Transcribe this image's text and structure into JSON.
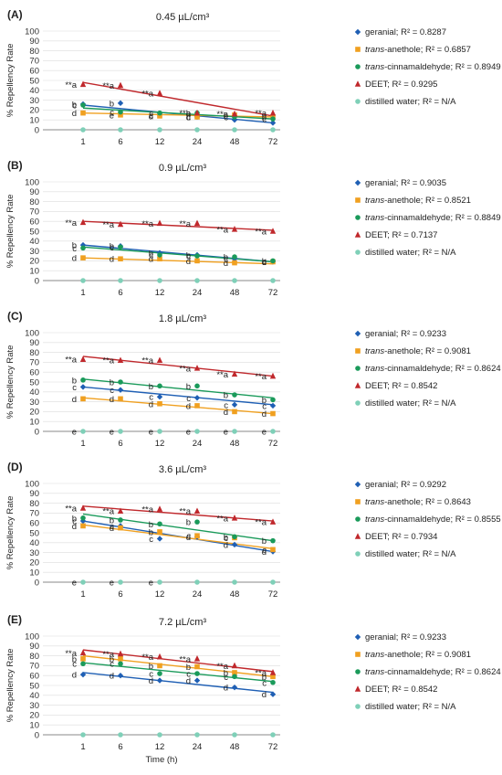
{
  "figure": {
    "ylabel": "% Repellency Rate",
    "xlabel": "Time (h)"
  },
  "chart_data": [
    {
      "type": "scatter",
      "panel": "(A)",
      "title": "0.45 µL/cm³",
      "x_categories": [
        "1",
        "6",
        "12",
        "24",
        "48",
        "72"
      ],
      "ylim": [
        0,
        100
      ],
      "yticks": [
        0,
        10,
        20,
        30,
        40,
        50,
        60,
        70,
        80,
        90,
        100
      ],
      "ylabel": "% Repellency Rate",
      "xlabel": "",
      "series": [
        {
          "name": "geranial",
          "r2": "R² = 0.8287",
          "marker": "diamond",
          "color": "#1f5fb4",
          "values": [
            26,
            27,
            15,
            13,
            10,
            7
          ],
          "fit": [
            25,
            7
          ]
        },
        {
          "name": "trans-anethole",
          "italic": "trans",
          "rest": "-anethole",
          "r2": "R² = 0.6857",
          "marker": "square",
          "color": "#f0a020",
          "values": [
            17,
            15,
            14,
            13,
            15,
            13
          ],
          "fit": [
            17,
            13
          ]
        },
        {
          "name": "trans-cinnamaldehyde",
          "italic": "trans",
          "rest": "-cinnamaldehyde",
          "r2": "R² = 0.8949",
          "marker": "circle",
          "color": "#1a9a5a",
          "values": [
            25,
            18,
            17,
            17,
            13,
            11
          ],
          "fit": [
            22,
            11
          ]
        },
        {
          "name": "DEET",
          "r2": "R² = 0.9295",
          "marker": "triangle",
          "color": "#c0282c",
          "values": [
            46,
            45,
            37,
            17,
            16,
            17
          ],
          "fit": [
            48,
            14
          ]
        },
        {
          "name": "distilled water",
          "r2": "R² = N/A",
          "marker": "circle",
          "color": "#7fd0b8",
          "values": [
            0,
            0,
            0,
            0,
            0,
            0
          ],
          "fit": null
        }
      ],
      "letters": [
        {
          "x": "1",
          "stack": [
            "**a",
            "b",
            "c",
            "d"
          ]
        },
        {
          "x": "6",
          "stack": [
            "**a",
            "b",
            "c",
            "e"
          ]
        },
        {
          "x": "12",
          "stack": [
            "**a",
            "c",
            "c",
            "d"
          ]
        },
        {
          "x": "24",
          "stack": [
            "**a",
            "b",
            "c",
            "d"
          ]
        },
        {
          "x": "48",
          "stack": [
            "**a",
            "b",
            "c"
          ]
        },
        {
          "x": "72",
          "stack": [
            "**a",
            "b",
            "c"
          ]
        }
      ]
    },
    {
      "type": "scatter",
      "panel": "(B)",
      "title": "0.9 µL/cm³",
      "x_categories": [
        "1",
        "6",
        "12",
        "24",
        "48",
        "72"
      ],
      "ylim": [
        0,
        100
      ],
      "yticks": [
        0,
        10,
        20,
        30,
        40,
        50,
        60,
        70,
        80,
        90,
        100
      ],
      "ylabel": "% Repellency Rate",
      "xlabel": "",
      "series": [
        {
          "name": "geranial",
          "r2": "R² = 0.9035",
          "marker": "diamond",
          "color": "#1f5fb4",
          "values": [
            36,
            35,
            28,
            26,
            22,
            19
          ],
          "fit": [
            36,
            19
          ]
        },
        {
          "name": "trans-anethole",
          "italic": "trans",
          "rest": "-anethole",
          "r2": "R² = 0.8521",
          "marker": "square",
          "color": "#f0a020",
          "values": [
            23,
            22,
            22,
            20,
            18,
            19
          ],
          "fit": [
            23,
            17
          ]
        },
        {
          "name": "trans-cinnamaldehyde",
          "italic": "trans",
          "rest": "-cinnamaldehyde",
          "r2": "R² = 0.8849",
          "marker": "circle",
          "color": "#1a9a5a",
          "values": [
            33,
            34,
            26,
            25,
            24,
            20
          ],
          "fit": [
            34,
            19
          ]
        },
        {
          "name": "DEET",
          "r2": "R² = 0.7137",
          "marker": "triangle",
          "color": "#c0282c",
          "values": [
            59,
            57,
            58,
            58,
            52,
            50
          ],
          "fit": [
            60,
            51
          ]
        },
        {
          "name": "distilled water",
          "r2": "R² = N/A",
          "marker": "circle",
          "color": "#7fd0b8",
          "values": [
            0,
            0,
            0,
            0,
            0,
            0
          ],
          "fit": null
        }
      ],
      "letters": [
        {
          "x": "1",
          "stack": [
            "**a",
            "b",
            "c",
            "d"
          ]
        },
        {
          "x": "6",
          "stack": [
            "**a",
            "b",
            "c",
            "d"
          ]
        },
        {
          "x": "12",
          "stack": [
            "**a",
            "b",
            "c",
            "d"
          ]
        },
        {
          "x": "24",
          "stack": [
            "**a",
            "b",
            "c",
            "d"
          ]
        },
        {
          "x": "48",
          "stack": [
            "**a",
            "b",
            "c",
            "d"
          ]
        },
        {
          "x": "72",
          "stack": [
            "**a",
            "b",
            "c",
            "d"
          ]
        }
      ]
    },
    {
      "type": "scatter",
      "panel": "(C)",
      "title": "1.8 µL/cm³",
      "x_categories": [
        "1",
        "6",
        "12",
        "24",
        "48",
        "72"
      ],
      "ylim": [
        0,
        100
      ],
      "yticks": [
        0,
        10,
        20,
        30,
        40,
        50,
        60,
        70,
        80,
        90,
        100
      ],
      "ylabel": "% Repellency Rate",
      "xlabel": "",
      "series": [
        {
          "name": "geranial",
          "r2": "R² = 0.9233",
          "marker": "diamond",
          "color": "#1f5fb4",
          "values": [
            45,
            42,
            35,
            34,
            27,
            26
          ],
          "fit": [
            45,
            27
          ]
        },
        {
          "name": "trans-anethole",
          "italic": "trans",
          "rest": "-anethole",
          "r2": "R² = 0.9081",
          "marker": "square",
          "color": "#f0a020",
          "values": [
            33,
            33,
            28,
            26,
            20,
            18
          ],
          "fit": [
            34,
            18
          ]
        },
        {
          "name": "trans-cinnamaldehyde",
          "italic": "trans",
          "rest": "-cinnamaldehyde",
          "r2": "R² = 0.8624",
          "marker": "circle",
          "color": "#1a9a5a",
          "values": [
            52,
            50,
            46,
            46,
            37,
            32
          ],
          "fit": [
            53,
            34
          ]
        },
        {
          "name": "DEET",
          "r2": "R² = 0.8542",
          "marker": "triangle",
          "color": "#c0282c",
          "values": [
            73,
            72,
            72,
            64,
            58,
            56
          ],
          "fit": [
            76,
            56
          ]
        },
        {
          "name": "distilled water",
          "r2": "R² = N/A",
          "marker": "circle",
          "color": "#7fd0b8",
          "values": [
            0,
            0,
            0,
            0,
            0,
            0
          ],
          "fit": null
        }
      ],
      "letters": [
        {
          "x": "1",
          "stack": [
            "**a",
            "b",
            "c",
            "d",
            "e"
          ]
        },
        {
          "x": "6",
          "stack": [
            "**a",
            "b",
            "c",
            "d",
            "e"
          ]
        },
        {
          "x": "12",
          "stack": [
            "**a",
            "b",
            "c",
            "d",
            "e"
          ]
        },
        {
          "x": "24",
          "stack": [
            "**a",
            "b",
            "c",
            "d",
            "e"
          ]
        },
        {
          "x": "48",
          "stack": [
            "**a",
            "b",
            "c",
            "d",
            "e"
          ]
        },
        {
          "x": "72",
          "stack": [
            "**a",
            "b",
            "c",
            "d",
            "e"
          ]
        }
      ]
    },
    {
      "type": "scatter",
      "panel": "(D)",
      "title": "3.6 µL/cm³",
      "x_categories": [
        "1",
        "6",
        "12",
        "24",
        "48",
        "72"
      ],
      "ylim": [
        0,
        100
      ],
      "yticks": [
        0,
        10,
        20,
        30,
        40,
        50,
        60,
        70,
        80,
        90,
        100
      ],
      "ylabel": "% Repellency Rate",
      "xlabel": "",
      "series": [
        {
          "name": "geranial",
          "r2": "R² = 0.9292",
          "marker": "diamond",
          "color": "#1f5fb4",
          "values": [
            62,
            57,
            44,
            46,
            38,
            31
          ],
          "fit": [
            62,
            31
          ]
        },
        {
          "name": "trans-anethole",
          "italic": "trans",
          "rest": "-anethole",
          "r2": "R² = 0.8643",
          "marker": "square",
          "color": "#f0a020",
          "values": [
            57,
            55,
            51,
            47,
            45,
            33
          ],
          "fit": [
            58,
            34
          ]
        },
        {
          "name": "trans-cinnamaldehyde",
          "italic": "trans",
          "rest": "-cinnamaldehyde",
          "r2": "R² = 0.8555",
          "marker": "circle",
          "color": "#1a9a5a",
          "values": [
            65,
            63,
            59,
            61,
            46,
            42
          ],
          "fit": [
            69,
            42
          ]
        },
        {
          "name": "DEET",
          "r2": "R² = 0.7934",
          "marker": "triangle",
          "color": "#c0282c",
          "values": [
            75,
            72,
            74,
            72,
            65,
            61
          ],
          "fit": [
            77,
            62
          ]
        },
        {
          "name": "distilled water",
          "r2": "R² = N/A",
          "marker": "circle",
          "color": "#7fd0b8",
          "values": [
            0,
            0,
            0,
            0,
            0,
            0
          ],
          "fit": null
        }
      ],
      "letters": [
        {
          "x": "1",
          "stack": [
            "**a",
            "b",
            "c",
            "d",
            "e"
          ]
        },
        {
          "x": "6",
          "stack": [
            "**a",
            "b",
            "c",
            "d",
            "e"
          ]
        },
        {
          "x": "12",
          "stack": [
            "**a",
            "b",
            "b",
            "c",
            "e"
          ]
        },
        {
          "x": "24",
          "stack": [
            "**a",
            "b",
            "c",
            "d"
          ]
        },
        {
          "x": "48",
          "stack": [
            "**a",
            "b",
            "c",
            "d"
          ]
        },
        {
          "x": "72",
          "stack": [
            "**a",
            "b",
            "c",
            "d"
          ]
        }
      ]
    },
    {
      "type": "scatter",
      "panel": "(E)",
      "title": "7.2 µL/cm³",
      "x_categories": [
        "1",
        "6",
        "12",
        "24",
        "48",
        "72"
      ],
      "ylim": [
        0,
        100
      ],
      "yticks": [
        0,
        10,
        20,
        30,
        40,
        50,
        60,
        70,
        80,
        90,
        100
      ],
      "ylabel": "% Repellency Rate",
      "xlabel": "Time (h)",
      "series": [
        {
          "name": "geranial",
          "r2": "R² = 0.9233",
          "marker": "diamond",
          "color": "#1f5fb4",
          "values": [
            61,
            60,
            55,
            55,
            48,
            41
          ],
          "fit": [
            63,
            43
          ]
        },
        {
          "name": "trans-anethole",
          "italic": "trans",
          "rest": "-anethole",
          "r2": "R² = 0.9081",
          "marker": "square",
          "color": "#f0a020",
          "values": [
            77,
            77,
            70,
            69,
            63,
            59
          ],
          "fit": [
            80,
            59
          ]
        },
        {
          "name": "trans-cinnamaldehyde",
          "italic": "trans",
          "rest": "-cinnamaldehyde",
          "r2": "R² = 0.8624",
          "marker": "circle",
          "color": "#1a9a5a",
          "values": [
            72,
            72,
            62,
            62,
            59,
            53
          ],
          "fit": [
            73,
            54
          ]
        },
        {
          "name": "DEET",
          "r2": "R² = 0.8542",
          "marker": "triangle",
          "color": "#c0282c",
          "values": [
            83,
            82,
            79,
            77,
            70,
            63
          ],
          "fit": [
            86,
            64
          ]
        },
        {
          "name": "distilled water",
          "r2": "R² = N/A",
          "marker": "circle",
          "color": "#7fd0b8",
          "values": [
            0,
            0,
            0,
            0,
            0,
            0
          ],
          "fit": null
        }
      ],
      "letters": [
        {
          "x": "1",
          "stack": [
            "**a",
            "b",
            "c",
            "d"
          ]
        },
        {
          "x": "6",
          "stack": [
            "**a",
            "b",
            "c",
            "d"
          ]
        },
        {
          "x": "12",
          "stack": [
            "**a",
            "b",
            "c",
            "d"
          ]
        },
        {
          "x": "24",
          "stack": [
            "**a",
            "b",
            "c",
            "d"
          ]
        },
        {
          "x": "48",
          "stack": [
            "**a",
            "b",
            "c",
            "d"
          ]
        },
        {
          "x": "72",
          "stack": [
            "**a",
            "b",
            "c",
            "d"
          ]
        }
      ]
    }
  ]
}
